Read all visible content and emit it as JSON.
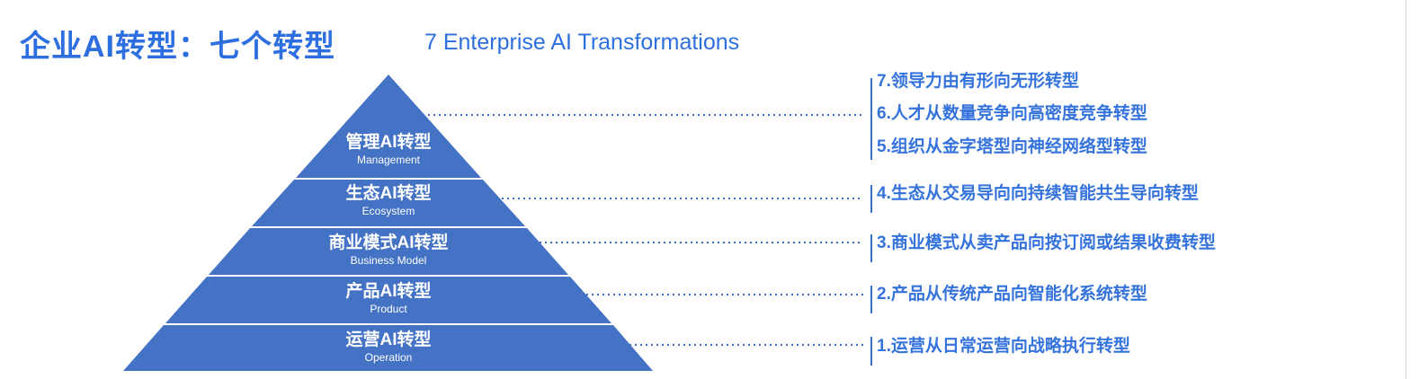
{
  "title": "企业AI转型：七个转型",
  "subtitle": "7 Enterprise AI Transformations",
  "colors": {
    "accent": "#2d6fe0",
    "pyramid": "#4472c4",
    "item_text": "#3472dc"
  },
  "layers": [
    {
      "zh": "管理AI转型",
      "en": "Management"
    },
    {
      "zh": "生态AI转型",
      "en": "Ecosystem"
    },
    {
      "zh": "商业模式AI转型",
      "en": "Business Model"
    },
    {
      "zh": "产品AI转型",
      "en": "Product"
    },
    {
      "zh": "运营AI转型",
      "en": "Operation"
    }
  ],
  "items": [
    "7.领导力由有形向无形转型",
    "6.人才从数量竞争向高密度竞争转型",
    "5.组织从金字塔型向神经网络型转型",
    "4.生态从交易导向向持续智能共生导向转型",
    "3.商业模式从卖产品向按订阅或结果收费转型",
    "2.产品从传统产品向智能化系统转型",
    "1.运营从日常运营向战略执行转型"
  ]
}
